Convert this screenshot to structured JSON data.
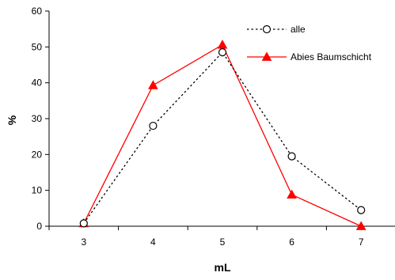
{
  "chart_data": {
    "type": "line",
    "x": [
      3,
      4,
      5,
      6,
      7
    ],
    "xlabel": "mL",
    "ylabel": "%",
    "xlim": [
      2.5,
      7.5
    ],
    "ylim": [
      0,
      60
    ],
    "yticks": [
      0,
      10,
      20,
      30,
      40,
      50,
      60
    ],
    "grid": false,
    "legend": "top-right",
    "series": [
      {
        "name": "alle",
        "values": [
          0.8,
          28.0,
          48.5,
          19.5,
          4.5
        ],
        "color": "#000000",
        "line": "dotted",
        "marker": "open-circle"
      },
      {
        "name": "Abies Baumschicht",
        "values": [
          0.8,
          39.3,
          50.6,
          8.8,
          0.0
        ],
        "color": "#ff0000",
        "line": "solid",
        "marker": "filled-triangle"
      }
    ]
  }
}
